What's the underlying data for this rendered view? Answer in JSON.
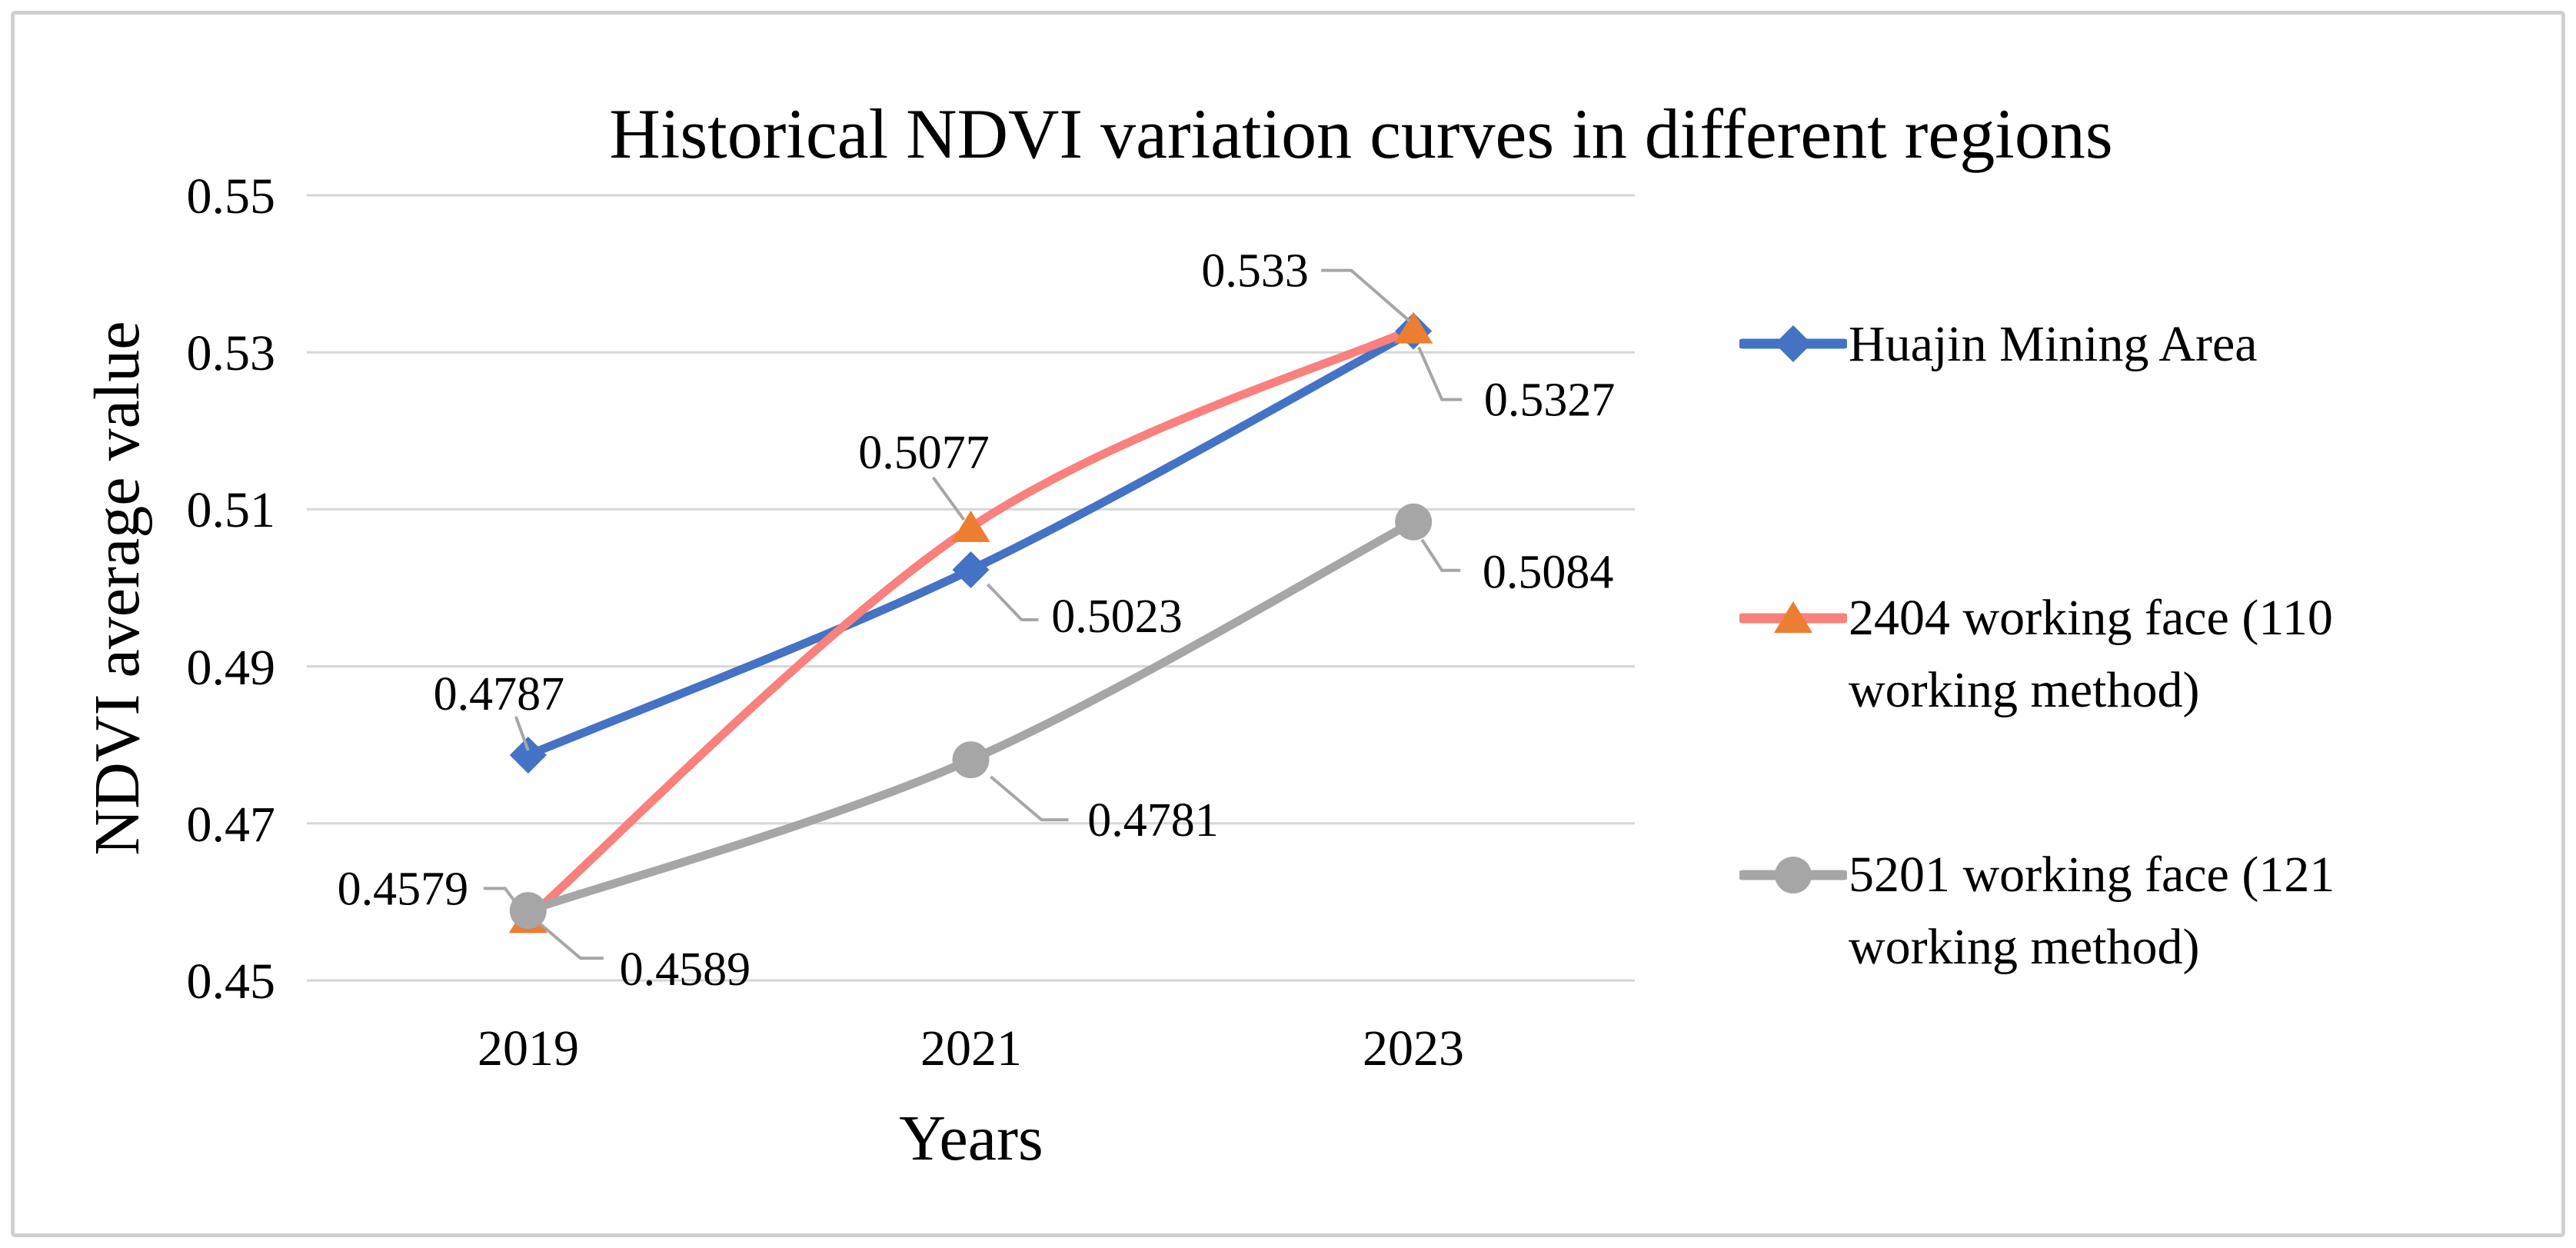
{
  "chart_data": {
    "type": "line",
    "title": "Historical NDVI variation curves in different regions",
    "xlabel": "Years",
    "ylabel": "NDVI average value",
    "categories": [
      "2019",
      "2021",
      "2023"
    ],
    "y_ticks": [
      "0.55",
      "0.53",
      "0.51",
      "0.49",
      "0.47",
      "0.45"
    ],
    "ylim": [
      0.45,
      0.55
    ],
    "grid": true,
    "smooth_lines": true,
    "legend_position": "right",
    "gridline_color": "#d6d6d6",
    "leader_color": "#a6a6a6",
    "series": [
      {
        "name": "Huajin Mining Area",
        "legend_lines": [
          "Huajin Mining Area"
        ],
        "marker": "diamond",
        "line_color": "#4472C4",
        "marker_color": "#4472C4",
        "values": [
          0.4787,
          0.5023,
          0.5327
        ],
        "data_labels": [
          "0.4787",
          "0.5023",
          "0.5327"
        ]
      },
      {
        "name": "2404 working face (110 working method)",
        "legend_lines": [
          "2404 working face (110",
          "working method)"
        ],
        "marker": "triangle",
        "line_color": "#F9807D",
        "marker_color": "#ED7D31",
        "values": [
          0.4579,
          0.5077,
          0.533
        ],
        "data_labels": [
          "0.4579",
          "0.5077",
          "0.533"
        ]
      },
      {
        "name": "5201 working face (121 working method)",
        "legend_lines": [
          "5201 working face (121",
          "working method)"
        ],
        "marker": "circle",
        "line_color": "#A6A6A6",
        "marker_color": "#A6A6A6",
        "values": [
          0.4589,
          0.4781,
          0.5084
        ],
        "data_labels": [
          "0.4589",
          "0.4781",
          "0.5084"
        ]
      }
    ]
  }
}
